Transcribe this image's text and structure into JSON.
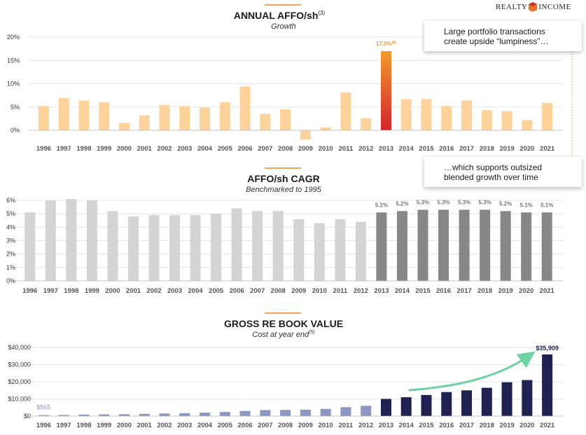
{
  "logo": {
    "left": "REALTY",
    "right": "INCOME",
    "mark_color": "#e8722a"
  },
  "notes": [
    {
      "line1": "Large portfolio transactions",
      "line2": "create upside “lumpiness”…"
    },
    {
      "line1": "…which supports outsized",
      "line2": "blended growth over time"
    }
  ],
  "colors": {
    "orange_light": "#fdd39b",
    "highlight_top": "#f29a2e",
    "highlight_bottom": "#d4232b",
    "gray_light": "#d4d4d4",
    "gray_dark": "#878787",
    "navy": "#1f2250",
    "blue_light": "#8d97c4",
    "green_arrow": "#6ed3a2",
    "accent_line": "#f5a35b"
  },
  "chart_data": [
    {
      "type": "bar",
      "title": "ANNUAL AFFO/sh",
      "title_superscript": "(3)",
      "subtitle": "Growth",
      "categories": [
        "1996",
        "1997",
        "1998",
        "1999",
        "2000",
        "2001",
        "2002",
        "2003",
        "2004",
        "2005",
        "2006",
        "2007",
        "2008",
        "2009",
        "2010",
        "2011",
        "2012",
        "2013",
        "2014",
        "2015",
        "2016",
        "2017",
        "2018",
        "2019",
        "2020",
        "2021"
      ],
      "values": [
        5.2,
        6.9,
        6.4,
        6.0,
        1.6,
        3.2,
        5.4,
        5.2,
        4.9,
        6.0,
        9.4,
        3.5,
        4.5,
        -2.0,
        0.6,
        8.1,
        2.6,
        17.0,
        6.7,
        6.7,
        5.2,
        6.4,
        4.3,
        4.1,
        2.2,
        5.9
      ],
      "highlight_index": 17,
      "highlight_label": "17.0%",
      "highlight_label_sup": "(4)",
      "yticks": [
        "0%",
        "5%",
        "10%",
        "15%",
        "20%"
      ],
      "ytick_values": [
        0,
        5,
        10,
        15,
        20
      ],
      "ylim": [
        -2.5,
        20
      ]
    },
    {
      "type": "bar",
      "title": "AFFO/sh CAGR",
      "subtitle": "Benchmarked to 1995",
      "categories": [
        "1996",
        "1997",
        "1998",
        "1999",
        "2000",
        "2001",
        "2002",
        "2003",
        "2004",
        "2005",
        "2006",
        "2007",
        "2008",
        "2009",
        "2010",
        "2011",
        "2012",
        "2013",
        "2014",
        "2015",
        "2016",
        "2017",
        "2018",
        "2019",
        "2020",
        "2021"
      ],
      "values": [
        5.1,
        6.0,
        6.1,
        6.0,
        5.2,
        4.8,
        4.9,
        4.9,
        4.9,
        5.0,
        5.4,
        5.2,
        5.2,
        4.6,
        4.3,
        4.6,
        4.4,
        5.1,
        5.2,
        5.3,
        5.3,
        5.3,
        5.3,
        5.2,
        5.1,
        5.1
      ],
      "data_labels": [
        "",
        "",
        "",
        "",
        "",
        "",
        "",
        "",
        "",
        "",
        "",
        "",
        "",
        "",
        "",
        "",
        "",
        "5.1%",
        "5.2%",
        "5.3%",
        "5.3%",
        "5.3%",
        "5.3%",
        "5.2%",
        "5.1%",
        "5.1%"
      ],
      "yticks": [
        "0%",
        "1%",
        "2%",
        "3%",
        "4%",
        "5%",
        "6%"
      ],
      "ytick_values": [
        0,
        1,
        2,
        3,
        4,
        5,
        6
      ],
      "ylim": [
        0,
        6
      ]
    },
    {
      "type": "bar",
      "title": "GROSS RE BOOK VALUE",
      "subtitle": "Cost at year end",
      "subtitle_superscript": "(5)",
      "categories": [
        "1996",
        "1997",
        "1998",
        "1999",
        "2000",
        "2001",
        "2002",
        "2003",
        "2004",
        "2005",
        "2006",
        "2007",
        "2008",
        "2009",
        "2010",
        "2011",
        "2012",
        "2013",
        "2014",
        "2015",
        "2016",
        "2017",
        "2018",
        "2019",
        "2020",
        "2021"
      ],
      "values": [
        565,
        650,
        900,
        1000,
        1100,
        1300,
        1500,
        1700,
        2000,
        2400,
        3000,
        3500,
        3600,
        3700,
        4200,
        5200,
        6000,
        10000,
        11000,
        12300,
        14000,
        15000,
        16500,
        19700,
        21000,
        35909
      ],
      "first_label": "$565",
      "last_label": "$35,909",
      "yticks": [
        "$0",
        "$10,000",
        "$20,000",
        "$30,000",
        "$40,000"
      ],
      "ytick_values": [
        0,
        10000,
        20000,
        30000,
        40000
      ],
      "ylim": [
        0,
        40000
      ]
    }
  ]
}
